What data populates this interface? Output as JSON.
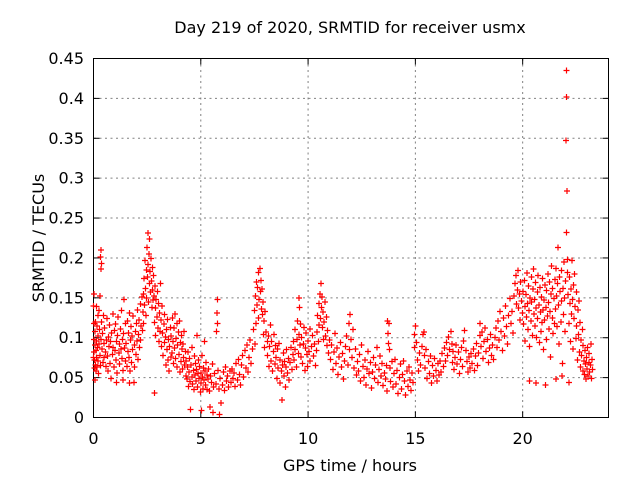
{
  "chart_data": {
    "type": "scatter",
    "title": "Day 219 of 2020, SRMTID for receiver usmx",
    "xlabel": "GPS time / hours",
    "ylabel": "SRMTID / TECUs",
    "xlim": [
      0,
      24
    ],
    "ylim": [
      0,
      0.45
    ],
    "xticks": [
      0,
      5,
      10,
      15,
      20
    ],
    "yticks": [
      0,
      0.05,
      0.1,
      0.15,
      0.2,
      0.25,
      0.3,
      0.35,
      0.4,
      0.45
    ],
    "grid": true,
    "legend_position": "none",
    "marker": {
      "shape": "plus",
      "color": "#ff0000",
      "size": 7
    },
    "series_name": "SRMTID",
    "points_flat": [
      0.01,
      0.14,
      0.01,
      0.075,
      0.02,
      0.155,
      0.02,
      0.118,
      0.03,
      0.098,
      0.03,
      0.082,
      0.04,
      0.062,
      0.05,
      0.072,
      0.06,
      0.047,
      0.07,
      0.091,
      0.08,
      0.108,
      0.09,
      0.066,
      0.1,
      0.12,
      0.11,
      0.084,
      0.12,
      0.058,
      0.13,
      0.139,
      0.14,
      0.096,
      0.15,
      0.075,
      0.16,
      0.115,
      0.17,
      0.063,
      0.18,
      0.088,
      0.2,
      0.128,
      0.21,
      0.071,
      0.22,
      0.102,
      0.24,
      0.055,
      0.25,
      0.134,
      0.26,
      0.092,
      0.28,
      0.11,
      0.3,
      0.152,
      0.31,
      0.078,
      0.32,
      0.201,
      0.33,
      0.065,
      0.34,
      0.21,
      0.35,
      0.186,
      0.36,
      0.098,
      0.37,
      0.193,
      0.38,
      0.12,
      0.4,
      0.086,
      0.42,
      0.105,
      0.44,
      0.069,
      0.46,
      0.128,
      0.48,
      0.093,
      0.5,
      0.075,
      0.52,
      0.112,
      0.55,
      0.082,
      0.58,
      0.064,
      0.6,
      0.097,
      0.62,
      0.124,
      0.65,
      0.077,
      0.68,
      0.058,
      0.7,
      0.101,
      0.72,
      0.089,
      0.75,
      0.116,
      0.78,
      0.068,
      0.8,
      0.095,
      0.82,
      0.049,
      0.85,
      0.106,
      0.88,
      0.079,
      0.9,
      0.13,
      0.92,
      0.088,
      0.95,
      0.063,
      0.98,
      0.109,
      1.0,
      0.084,
      1.02,
      0.117,
      1.05,
      0.072,
      1.07,
      0.044,
      1.08,
      0.095,
      1.1,
      0.056,
      1.12,
      0.103,
      1.15,
      0.126,
      1.18,
      0.081,
      1.2,
      0.092,
      1.22,
      0.067,
      1.25,
      0.111,
      1.28,
      0.086,
      1.3,
      0.134,
      1.32,
      0.074,
      1.35,
      0.098,
      1.37,
      0.047,
      1.38,
      0.059,
      1.4,
      0.105,
      1.42,
      0.148,
      1.45,
      0.087,
      1.48,
      0.071,
      1.5,
      0.118,
      1.52,
      0.093,
      1.55,
      0.064,
      1.58,
      0.121,
      1.6,
      0.083,
      1.62,
      0.106,
      1.65,
      0.075,
      1.67,
      0.043,
      1.68,
      0.131,
      1.7,
      0.058,
      1.72,
      0.097,
      1.75,
      0.114,
      1.78,
      0.069,
      1.8,
      0.102,
      1.82,
      0.085,
      1.85,
      0.127,
      1.88,
      0.044,
      1.9,
      0.091,
      1.92,
      0.063,
      1.95,
      0.108,
      1.98,
      0.079,
      2.0,
      0.118,
      2.02,
      0.096,
      2.05,
      0.135,
      2.08,
      0.073,
      2.1,
      0.104,
      2.12,
      0.122,
      2.15,
      0.088,
      2.18,
      0.142,
      2.2,
      0.097,
      2.22,
      0.115,
      2.25,
      0.151,
      2.28,
      0.109,
      2.3,
      0.132,
      2.32,
      0.155,
      2.34,
      0.118,
      2.36,
      0.174,
      2.38,
      0.141,
      2.4,
      0.197,
      2.42,
      0.162,
      2.44,
      0.128,
      2.46,
      0.185,
      2.48,
      0.15,
      2.5,
      0.213,
      2.52,
      0.176,
      2.54,
      0.192,
      2.55,
      0.231,
      2.56,
      0.145,
      2.58,
      0.205,
      2.6,
      0.168,
      2.62,
      0.224,
      2.64,
      0.183,
      2.66,
      0.157,
      2.68,
      0.199,
      2.7,
      0.171,
      2.72,
      0.138,
      2.74,
      0.188,
      2.76,
      0.16,
      2.78,
      0.147,
      2.8,
      0.178,
      2.82,
      0.152,
      2.84,
      0.119,
      2.85,
      0.031,
      2.86,
      0.165,
      2.88,
      0.137,
      2.9,
      0.103,
      2.92,
      0.148,
      2.95,
      0.126,
      2.98,
      0.158,
      3.0,
      0.112,
      3.02,
      0.143,
      3.05,
      0.095,
      3.08,
      0.131,
      3.1,
      0.108,
      3.12,
      0.168,
      3.15,
      0.122,
      3.18,
      0.089,
      3.2,
      0.14,
      3.22,
      0.106,
      3.25,
      0.078,
      3.28,
      0.117,
      3.3,
      0.094,
      3.32,
      0.129,
      3.35,
      0.101,
      3.38,
      0.066,
      3.4,
      0.11,
      3.42,
      0.085,
      3.45,
      0.123,
      3.48,
      0.072,
      3.5,
      0.098,
      3.52,
      0.058,
      3.55,
      0.089,
      3.58,
      0.113,
      3.6,
      0.076,
      3.62,
      0.102,
      3.65,
      0.081,
      3.68,
      0.125,
      3.7,
      0.095,
      3.72,
      0.068,
      3.75,
      0.112,
      3.78,
      0.087,
      3.8,
      0.13,
      3.82,
      0.074,
      3.85,
      0.099,
      3.88,
      0.118,
      3.9,
      0.063,
      3.92,
      0.091,
      3.95,
      0.107,
      3.98,
      0.079,
      4.0,
      0.121,
      4.02,
      0.057,
      4.05,
      0.094,
      4.08,
      0.07,
      4.1,
      0.103,
      4.12,
      0.086,
      4.15,
      0.061,
      4.18,
      0.092,
      4.2,
      0.075,
      4.22,
      0.108,
      4.25,
      0.066,
      4.28,
      0.083,
      4.3,
      0.052,
      4.32,
      0.071,
      4.35,
      0.048,
      4.38,
      0.063,
      4.4,
      0.082,
      4.42,
      0.039,
      4.45,
      0.057,
      4.48,
      0.074,
      4.5,
      0.045,
      4.52,
      0.01,
      4.55,
      0.066,
      4.58,
      0.051,
      4.6,
      0.088,
      4.62,
      0.042,
      4.65,
      0.059,
      4.68,
      0.035,
      4.7,
      0.077,
      4.72,
      0.053,
      4.75,
      0.068,
      4.78,
      0.046,
      4.8,
      0.06,
      4.82,
      0.103,
      4.85,
      0.038,
      4.88,
      0.055,
      4.9,
      0.072,
      4.92,
      0.049,
      4.95,
      0.064,
      4.98,
      0.032,
      5.0,
      0.056,
      5.02,
      0.043,
      5.03,
      0.009,
      5.05,
      0.078,
      5.08,
      0.051,
      5.1,
      0.036,
      5.12,
      0.062,
      5.15,
      0.047,
      5.18,
      0.095,
      5.2,
      0.058,
      5.22,
      0.041,
      5.25,
      0.069,
      5.28,
      0.053,
      5.3,
      0.035,
      5.33,
      0.048,
      5.36,
      0.061,
      5.4,
      0.033,
      5.42,
      0.013,
      5.45,
      0.052,
      5.5,
      0.044,
      5.55,
      0.067,
      5.58,
      0.006,
      5.6,
      0.038,
      5.65,
      0.055,
      5.7,
      0.042,
      5.73,
      0.108,
      5.75,
      0.131,
      5.77,
      0.148,
      5.79,
      0.118,
      5.8,
      0.059,
      5.85,
      0.036,
      5.88,
      0.004,
      5.9,
      0.049,
      5.95,
      0.018,
      6.0,
      0.041,
      6.05,
      0.057,
      6.1,
      0.034,
      6.15,
      0.063,
      6.2,
      0.046,
      6.25,
      0.052,
      6.3,
      0.038,
      6.35,
      0.058,
      6.4,
      0.044,
      6.45,
      0.061,
      6.5,
      0.049,
      6.55,
      0.056,
      6.6,
      0.039,
      6.65,
      0.068,
      6.7,
      0.047,
      6.75,
      0.073,
      6.8,
      0.054,
      6.85,
      0.041,
      6.9,
      0.066,
      6.95,
      0.078,
      7.0,
      0.051,
      7.05,
      0.084,
      7.1,
      0.062,
      7.15,
      0.091,
      7.2,
      0.057,
      7.25,
      0.075,
      7.3,
      0.097,
      7.35,
      0.068,
      7.4,
      0.086,
      7.45,
      0.11,
      7.5,
      0.134,
      7.52,
      0.092,
      7.55,
      0.152,
      7.58,
      0.118,
      7.6,
      0.17,
      7.62,
      0.141,
      7.65,
      0.163,
      7.68,
      0.125,
      7.7,
      0.182,
      7.72,
      0.148,
      7.75,
      0.187,
      7.78,
      0.158,
      7.8,
      0.172,
      7.82,
      0.136,
      7.85,
      0.161,
      7.88,
      0.129,
      7.9,
      0.145,
      7.92,
      0.104,
      7.95,
      0.121,
      7.98,
      0.088,
      8.0,
      0.133,
      8.05,
      0.107,
      8.1,
      0.095,
      8.12,
      0.078,
      8.15,
      0.102,
      8.18,
      0.064,
      8.2,
      0.089,
      8.25,
      0.116,
      8.28,
      0.071,
      8.3,
      0.095,
      8.35,
      0.058,
      8.38,
      0.083,
      8.4,
      0.104,
      8.45,
      0.067,
      8.48,
      0.09,
      8.5,
      0.075,
      8.55,
      0.049,
      8.58,
      0.086,
      8.6,
      0.062,
      8.65,
      0.093,
      8.68,
      0.043,
      8.7,
      0.072,
      8.75,
      0.058,
      8.78,
      0.022,
      8.8,
      0.066,
      8.85,
      0.081,
      8.88,
      0.052,
      8.9,
      0.07,
      8.95,
      0.038,
      8.98,
      0.063,
      9.0,
      0.085,
      9.05,
      0.056,
      9.08,
      0.074,
      9.1,
      0.047,
      9.15,
      0.069,
      9.2,
      0.088,
      9.25,
      0.06,
      9.3,
      0.079,
      9.32,
      0.095,
      9.35,
      0.072,
      9.38,
      0.11,
      9.4,
      0.085,
      9.45,
      0.063,
      9.48,
      0.098,
      9.5,
      0.121,
      9.55,
      0.08,
      9.57,
      0.15,
      9.58,
      0.104,
      9.6,
      0.138,
      9.62,
      0.091,
      9.65,
      0.117,
      9.68,
      0.076,
      9.7,
      0.1,
      9.75,
      0.068,
      9.78,
      0.092,
      9.8,
      0.113,
      9.85,
      0.059,
      9.88,
      0.087,
      9.9,
      0.106,
      9.95,
      0.079,
      9.98,
      0.064,
      10.0,
      0.096,
      10.05,
      0.083,
      10.08,
      0.111,
      10.1,
      0.071,
      10.15,
      0.089,
      10.2,
      0.103,
      10.25,
      0.077,
      10.3,
      0.092,
      10.35,
      0.065,
      10.4,
      0.084,
      10.42,
      0.107,
      10.45,
      0.128,
      10.48,
      0.095,
      10.5,
      0.143,
      10.52,
      0.116,
      10.55,
      0.155,
      10.58,
      0.124,
      10.6,
      0.168,
      10.62,
      0.138,
      10.65,
      0.151,
      10.68,
      0.113,
      10.7,
      0.132,
      10.72,
      0.098,
      10.75,
      0.12,
      10.78,
      0.145,
      10.8,
      0.102,
      10.85,
      0.126,
      10.88,
      0.09,
      10.9,
      0.109,
      10.95,
      0.081,
      11.0,
      0.097,
      11.05,
      0.073,
      11.1,
      0.091,
      11.15,
      0.06,
      11.2,
      0.082,
      11.25,
      0.105,
      11.3,
      0.068,
      11.35,
      0.087,
      11.4,
      0.054,
      11.45,
      0.076,
      11.5,
      0.094,
      11.55,
      0.063,
      11.6,
      0.08,
      11.65,
      0.048,
      11.7,
      0.071,
      11.75,
      0.089,
      11.8,
      0.102,
      11.85,
      0.066,
      11.9,
      0.118,
      11.92,
      0.085,
      11.95,
      0.129,
      12.0,
      0.098,
      12.05,
      0.075,
      12.1,
      0.11,
      12.15,
      0.062,
      12.2,
      0.086,
      12.25,
      0.053,
      12.3,
      0.07,
      12.35,
      0.058,
      12.4,
      0.079,
      12.45,
      0.046,
      12.5,
      0.091,
      12.55,
      0.064,
      12.6,
      0.05,
      12.65,
      0.072,
      12.7,
      0.041,
      12.75,
      0.061,
      12.8,
      0.083,
      12.85,
      0.055,
      12.9,
      0.069,
      12.95,
      0.037,
      13.0,
      0.057,
      13.05,
      0.075,
      13.1,
      0.049,
      13.15,
      0.066,
      13.2,
      0.088,
      13.25,
      0.044,
      13.3,
      0.06,
      13.35,
      0.077,
      13.4,
      0.052,
      13.45,
      0.068,
      13.5,
      0.04,
      13.55,
      0.056,
      13.6,
      0.048,
      13.65,
      0.065,
      13.68,
      0.033,
      13.7,
      0.121,
      13.72,
      0.105,
      13.75,
      0.093,
      13.78,
      0.118,
      13.8,
      0.085,
      13.82,
      0.062,
      13.85,
      0.045,
      13.9,
      0.07,
      13.95,
      0.038,
      14.0,
      0.055,
      14.05,
      0.073,
      14.1,
      0.042,
      14.15,
      0.059,
      14.2,
      0.03,
      14.25,
      0.05,
      14.3,
      0.067,
      14.35,
      0.036,
      14.4,
      0.054,
      14.45,
      0.071,
      14.5,
      0.046,
      14.55,
      0.028,
      14.6,
      0.058,
      14.65,
      0.039,
      14.7,
      0.063,
      14.75,
      0.047,
      14.8,
      0.034,
      14.85,
      0.056,
      14.9,
      0.044,
      14.95,
      0.088,
      14.97,
      0.104,
      15.0,
      0.115,
      15.05,
      0.094,
      15.1,
      0.072,
      15.15,
      0.058,
      15.2,
      0.081,
      15.25,
      0.066,
      15.3,
      0.089,
      15.35,
      0.104,
      15.4,
      0.107,
      15.42,
      0.078,
      15.45,
      0.062,
      15.5,
      0.085,
      15.55,
      0.049,
      15.6,
      0.07,
      15.65,
      0.055,
      15.7,
      0.077,
      15.75,
      0.043,
      15.8,
      0.065,
      15.85,
      0.052,
      15.9,
      0.074,
      15.95,
      0.059,
      16.0,
      0.046,
      16.05,
      0.068,
      16.1,
      0.053,
      16.15,
      0.071,
      16.2,
      0.057,
      16.25,
      0.08,
      16.3,
      0.064,
      16.35,
      0.087,
      16.4,
      0.071,
      16.45,
      0.094,
      16.5,
      0.078,
      16.55,
      0.101,
      16.6,
      0.085,
      16.65,
      0.108,
      16.7,
      0.092,
      16.72,
      0.069,
      16.75,
      0.083,
      16.8,
      0.06,
      16.85,
      0.075,
      16.9,
      0.091,
      16.95,
      0.067,
      17.0,
      0.082,
      17.05,
      0.055,
      17.1,
      0.073,
      17.15,
      0.088,
      17.2,
      0.064,
      17.25,
      0.096,
      17.3,
      0.109,
      17.35,
      0.084,
      17.4,
      0.07,
      17.45,
      0.057,
      17.5,
      0.076,
      17.55,
      0.062,
      17.6,
      0.08,
      17.65,
      0.068,
      17.7,
      0.086,
      17.75,
      0.059,
      17.8,
      0.077,
      17.85,
      0.093,
      17.9,
      0.065,
      17.95,
      0.081,
      18.0,
      0.103,
      18.02,
      0.118,
      18.05,
      0.089,
      18.1,
      0.107,
      18.15,
      0.074,
      18.2,
      0.095,
      18.25,
      0.112,
      18.3,
      0.083,
      18.35,
      0.098,
      18.4,
      0.069,
      18.45,
      0.087,
      18.5,
      0.104,
      18.55,
      0.078,
      18.6,
      0.091,
      18.65,
      0.073,
      18.7,
      0.1,
      18.75,
      0.112,
      18.8,
      0.088,
      18.85,
      0.121,
      18.9,
      0.097,
      18.95,
      0.133,
      19.0,
      0.108,
      19.05,
      0.084,
      19.1,
      0.125,
      19.15,
      0.102,
      19.2,
      0.14,
      19.25,
      0.114,
      19.3,
      0.092,
      19.35,
      0.128,
      19.4,
      0.149,
      19.45,
      0.118,
      19.5,
      0.133,
      19.55,
      0.106,
      19.6,
      0.152,
      19.65,
      0.168,
      19.7,
      0.178,
      19.72,
      0.142,
      19.75,
      0.16,
      19.78,
      0.184,
      19.8,
      0.137,
      19.85,
      0.155,
      19.88,
      0.122,
      19.9,
      0.17,
      19.95,
      0.146,
      20.0,
      0.131,
      20.02,
      0.158,
      20.05,
      0.117,
      20.08,
      0.172,
      20.1,
      0.139,
      20.12,
      0.096,
      20.15,
      0.154,
      20.18,
      0.126,
      20.2,
      0.181,
      20.22,
      0.143,
      20.25,
      0.11,
      20.28,
      0.165,
      20.3,
      0.134,
      20.32,
      0.089,
      20.33,
      0.046,
      20.35,
      0.15,
      20.38,
      0.121,
      20.4,
      0.176,
      20.42,
      0.145,
      20.45,
      0.103,
      20.48,
      0.161,
      20.5,
      0.186,
      20.52,
      0.13,
      20.55,
      0.148,
      20.58,
      0.115,
      20.6,
      0.169,
      20.62,
      0.137,
      20.63,
      0.043,
      20.65,
      0.1,
      20.68,
      0.157,
      20.7,
      0.124,
      20.72,
      0.178,
      20.75,
      0.141,
      20.78,
      0.094,
      20.8,
      0.163,
      20.82,
      0.132,
      20.85,
      0.108,
      20.88,
      0.151,
      20.9,
      0.119,
      20.92,
      0.174,
      20.95,
      0.135,
      20.98,
      0.085,
      21.0,
      0.147,
      21.02,
      0.122,
      21.05,
      0.166,
      21.07,
      0.041,
      21.08,
      0.138,
      21.1,
      0.098,
      21.12,
      0.159,
      21.15,
      0.127,
      21.18,
      0.18,
      21.2,
      0.144,
      21.22,
      0.111,
      21.25,
      0.17,
      21.28,
      0.133,
      21.3,
      0.076,
      21.32,
      0.155,
      21.35,
      0.19,
      21.38,
      0.125,
      21.4,
      0.162,
      21.42,
      0.105,
      21.45,
      0.149,
      21.48,
      0.118,
      21.5,
      0.173,
      21.52,
      0.136,
      21.55,
      0.187,
      21.55,
      0.048,
      21.58,
      0.152,
      21.6,
      0.114,
      21.62,
      0.168,
      21.65,
      0.213,
      21.68,
      0.141,
      21.7,
      0.092,
      21.72,
      0.176,
      21.75,
      0.158,
      21.78,
      0.12,
      21.8,
      0.184,
      21.82,
      0.146,
      21.83,
      0.052,
      21.85,
      0.068,
      21.88,
      0.162,
      21.9,
      0.129,
      21.92,
      0.195,
      21.95,
      0.15,
      21.98,
      0.108,
      22.0,
      0.171,
      22.05,
      0.435,
      22.04,
      0.402,
      22.03,
      0.347,
      22.06,
      0.284,
      22.05,
      0.232,
      22.08,
      0.198,
      22.1,
      0.182,
      22.12,
      0.154,
      22.15,
      0.118,
      22.17,
      0.044,
      22.18,
      0.176,
      22.2,
      0.143,
      22.22,
      0.095,
      22.25,
      0.161,
      22.28,
      0.13,
      22.3,
      0.197,
      22.32,
      0.148,
      22.35,
      0.086,
      22.38,
      0.166,
      22.4,
      0.124,
      22.42,
      0.18,
      22.45,
      0.139,
      22.48,
      0.099,
      22.5,
      0.157,
      22.52,
      0.115,
      22.55,
      0.072,
      22.58,
      0.135,
      22.6,
      0.104,
      22.62,
      0.146,
      22.65,
      0.082,
      22.68,
      0.119,
      22.7,
      0.063,
      22.72,
      0.097,
      22.75,
      0.078,
      22.78,
      0.11,
      22.8,
      0.058,
      22.82,
      0.09,
      22.85,
      0.071,
      22.88,
      0.054,
      22.9,
      0.084,
      22.92,
      0.067,
      22.95,
      0.048,
      22.98,
      0.075,
      23.0,
      0.061,
      23.02,
      0.088,
      23.05,
      0.052,
      23.08,
      0.069,
      23.1,
      0.08,
      23.12,
      0.057,
      23.15,
      0.066,
      23.18,
      0.092,
      23.2,
      0.049,
      23.22,
      0.073,
      23.25,
      0.06
    ]
  },
  "colors": {
    "marker": "#ff0000",
    "grid": "#808080",
    "border": "#000000",
    "text": "#000000",
    "background": "#ffffff"
  }
}
